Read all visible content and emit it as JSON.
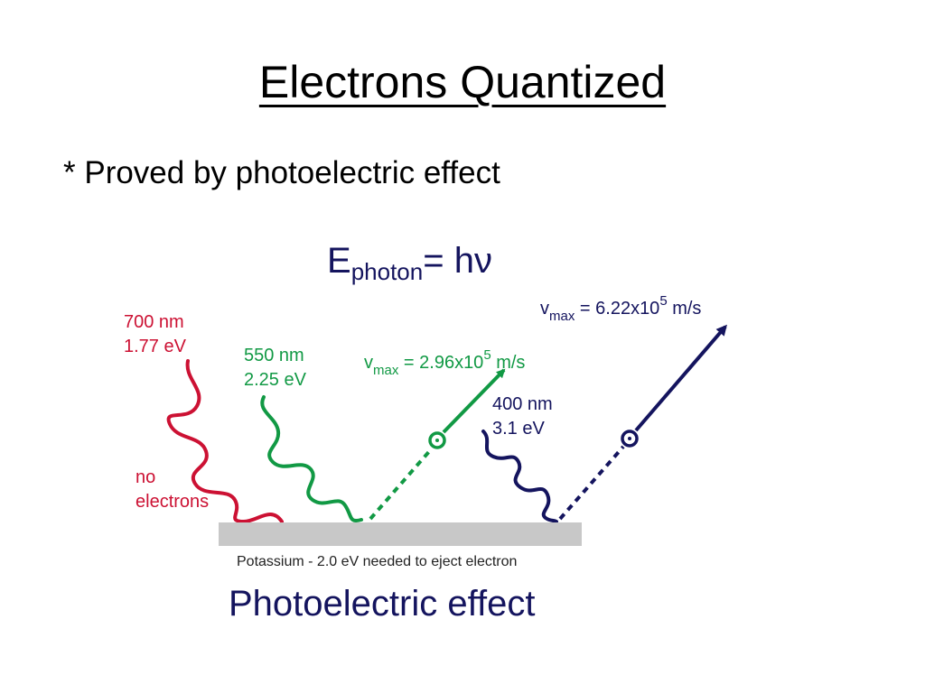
{
  "slide": {
    "title": "Electrons Quantized",
    "bullet": "* Proved by photoelectric effect"
  },
  "diagram": {
    "equation": {
      "lhs": "E",
      "subscript": "photon",
      "rhs": "= hν"
    },
    "waves": [
      {
        "wavelength": "700 nm",
        "energy": "1.77 eV",
        "result": [
          "no",
          "electrons"
        ],
        "color": "#cc1133"
      },
      {
        "wavelength": "550 nm",
        "energy": "2.25 eV",
        "color": "#119944"
      },
      {
        "wavelength": "400 nm",
        "energy": "3.1 eV",
        "color": "#14145e"
      }
    ],
    "velocities": [
      {
        "prefix": "v",
        "subscript": "max",
        "value": " = 2.96x10",
        "exponent": "5",
        "unit": " m/s",
        "color": "#119944"
      },
      {
        "prefix": "v",
        "subscript": "max",
        "value": " = 6.22x10",
        "exponent": "5",
        "unit": " m/s",
        "color": "#14145e"
      }
    ],
    "plate_label": "Potassium - 2.0 eV needed to eject electron",
    "caption": "Photoelectric effect",
    "colors": {
      "plate": "#c8c8c8",
      "caption": "#14145e"
    }
  }
}
